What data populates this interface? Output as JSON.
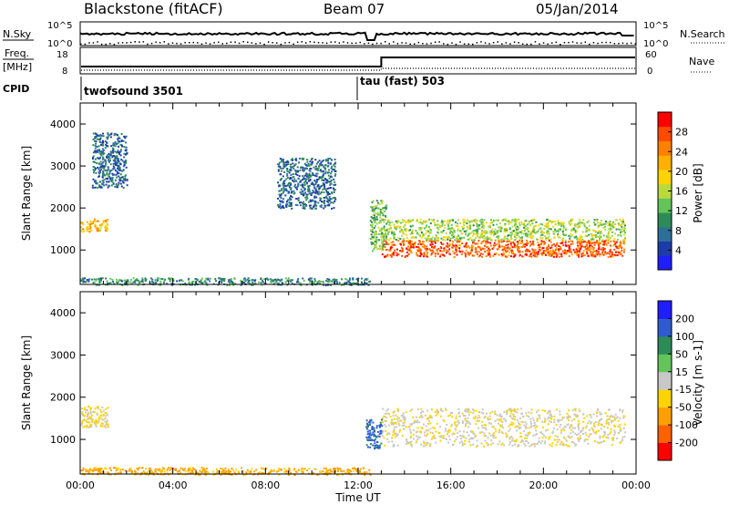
{
  "header": {
    "station": "Blackstone (fitACF)",
    "beam": "Beam 07",
    "date": "05/Jan/2014"
  },
  "noise_panel": {
    "left_label": "N.Sky",
    "right_label": "N.Search",
    "left_ticks": [
      "10^5",
      "10^0"
    ],
    "right_ticks": [
      "10^5",
      "10^0"
    ]
  },
  "freq_panel": {
    "left_label_top": "Freq.",
    "left_label_bottom": "[MHz]",
    "left_ticks": [
      "18",
      "8"
    ],
    "right_label": "Nave",
    "right_ticks": [
      "60",
      "0"
    ]
  },
  "cpid_panel": {
    "label": "CPID",
    "segments": [
      {
        "name": "twofsound 3501",
        "start_hour": 0
      },
      {
        "name": "tau (fast) 503",
        "start_hour": 12.0
      }
    ]
  },
  "x_axis": {
    "label": "Time UT",
    "ticks": [
      "00:00",
      "04:00",
      "08:00",
      "12:00",
      "16:00",
      "20:00",
      "00:00"
    ],
    "range_hours": [
      0,
      24
    ]
  },
  "power_panel": {
    "ylabel": "Slant Range [km]",
    "yticks": [
      "1000",
      "2000",
      "3000",
      "4000"
    ],
    "colorbar_label": "Power [dB]",
    "colorbar_ticks": [
      "4",
      "8",
      "12",
      "16",
      "20",
      "24",
      "28"
    ],
    "colorbar_colors": [
      "#1e1eff",
      "#1e3ca8",
      "#2e6f9a",
      "#2e8b57",
      "#62c45a",
      "#b9d93d",
      "#ffd400",
      "#ffb000",
      "#ff8000",
      "#ff4a00",
      "#ff0000"
    ]
  },
  "velocity_panel": {
    "ylabel": "Slant Range [km]",
    "yticks": [
      "1000",
      "2000",
      "3000",
      "4000"
    ],
    "colorbar_label": "Velocity [m s-1]",
    "colorbar_ticks": [
      "200",
      "100",
      "50",
      "15",
      "-15",
      "-50",
      "-100",
      "-200"
    ],
    "colorbar_colors": [
      "#1e1eff",
      "#2e5cd0",
      "#2e8b57",
      "#62c45a",
      "#c8c8c8",
      "#ffd400",
      "#ffa000",
      "#ff6000",
      "#ff0000"
    ]
  },
  "chart_data": {
    "type": "heatmap",
    "x_unit": "hours UT",
    "y_unit": "km",
    "ylim": [
      180,
      4500
    ],
    "xlim": [
      0,
      24
    ],
    "power_features": [
      {
        "x": [
          0.0,
          1.2
        ],
        "y": [
          1450,
          1750
        ],
        "level_dB": 20
      },
      {
        "x": [
          13.0,
          23.5
        ],
        "y": [
          850,
          1250
        ],
        "level_dB": 26
      },
      {
        "x": [
          13.0,
          23.5
        ],
        "y": [
          1250,
          1750
        ],
        "level_dB": 14
      },
      {
        "x": [
          12.5,
          13.2
        ],
        "y": [
          1000,
          2200
        ],
        "level_dB": 12
      },
      {
        "x": [
          0.5,
          2.0
        ],
        "y": [
          2500,
          3800
        ],
        "level_dB": 6
      },
      {
        "x": [
          8.5,
          11.0
        ],
        "y": [
          2000,
          3200
        ],
        "level_dB": 6
      },
      {
        "x": [
          0.0,
          12.5
        ],
        "y": [
          180,
          350
        ],
        "level_dB": 8
      }
    ],
    "velocity_features": [
      {
        "x": [
          13.0,
          23.5
        ],
        "y": [
          850,
          1750
        ],
        "velocity": -10
      },
      {
        "x": [
          0.0,
          1.2
        ],
        "y": [
          1300,
          1800
        ],
        "velocity": -20
      },
      {
        "x": [
          12.3,
          13.0
        ],
        "y": [
          800,
          1500
        ],
        "velocity": 60
      },
      {
        "x": [
          0.0,
          12.5
        ],
        "y": [
          180,
          350
        ],
        "velocity": -60
      }
    ]
  }
}
